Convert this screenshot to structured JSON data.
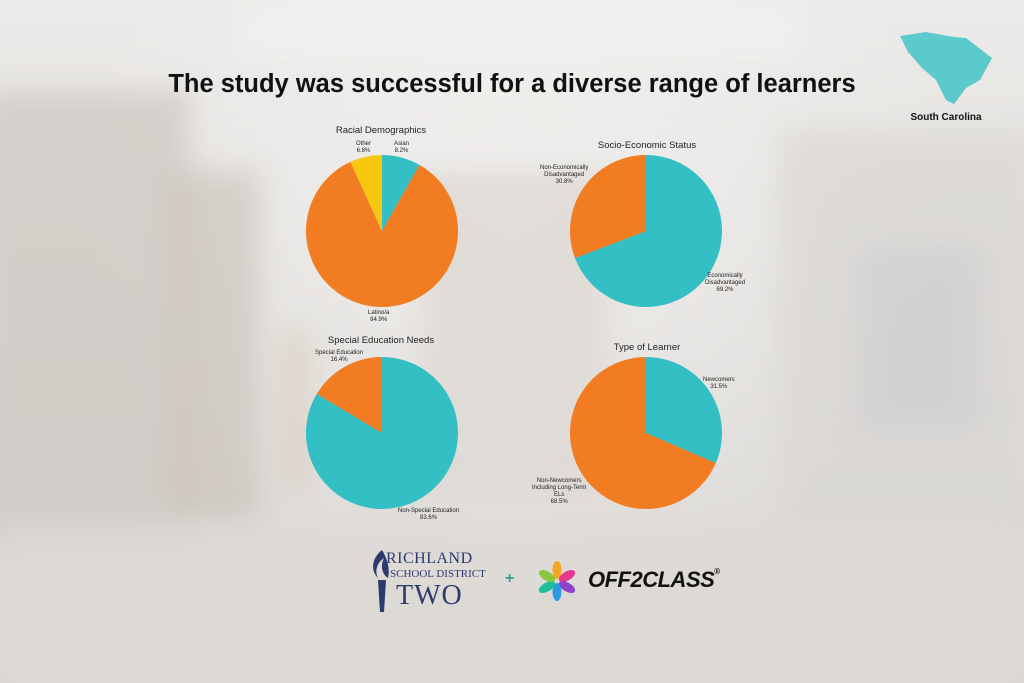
{
  "page": {
    "title": "The study was successful for a diverse range of learners",
    "state_label": "South Carolina"
  },
  "colors": {
    "teal": "#34bfc4",
    "orange": "#f27c21",
    "yellow": "#f8c811",
    "state_map": "#5cc9cc"
  },
  "chart_data": [
    {
      "type": "pie",
      "title": "Racial Demographics",
      "slices": [
        {
          "name": "Asian",
          "value": 8.2,
          "label": "8.2%",
          "color": "#34bfc4"
        },
        {
          "name": "Latino/a",
          "value": 84.9,
          "label": "84.9%",
          "color": "#f27c21"
        },
        {
          "name": "Other",
          "value": 6.8,
          "label": "6.8%",
          "color": "#f8c811"
        }
      ]
    },
    {
      "type": "pie",
      "title": "Socio-Economic Status",
      "slices": [
        {
          "name": "Economically Disadvantaged",
          "value": 69.2,
          "label": "69.2%",
          "color": "#34bfc4"
        },
        {
          "name": "Non-Economically Disadvantaged",
          "value": 30.8,
          "label": "30.8%",
          "color": "#f27c21"
        }
      ]
    },
    {
      "type": "pie",
      "title": "Special Education Needs",
      "slices": [
        {
          "name": "Non-Special Education",
          "value": 83.6,
          "label": "83.6%",
          "color": "#34bfc4"
        },
        {
          "name": "Special Education",
          "value": 16.4,
          "label": "16.4%",
          "color": "#f27c21"
        }
      ]
    },
    {
      "type": "pie",
      "title": "Type of Learner",
      "slices": [
        {
          "name": "Newcomers",
          "value": 31.5,
          "label": "31.5%",
          "color": "#34bfc4"
        },
        {
          "name": "Non-Newcomers Including Long-Term ELs",
          "value": 68.5,
          "label": "68.5%",
          "color": "#f27c21"
        }
      ]
    }
  ],
  "label_lines": {
    "c0": {
      "s0": [
        "Asian",
        "8.2%"
      ],
      "s1": [
        "Latino/a",
        "84.9%"
      ],
      "s2": [
        "Other",
        "6.8%"
      ]
    },
    "c1": {
      "s0": [
        "Economically",
        "Disadvantaged",
        "69.2%"
      ],
      "s1": [
        "Non-Economically",
        "Disadvantaged",
        "30.8%"
      ]
    },
    "c2": {
      "s0": [
        "Non-Special Education",
        "83.6%"
      ],
      "s1": [
        "Special Education",
        "16.4%"
      ]
    },
    "c3": {
      "s0": [
        "Newcomers",
        "31.5%"
      ],
      "s1": [
        "Non-Newcomers",
        "Including Long-Term",
        "ELs",
        "68.5%"
      ]
    }
  },
  "logos": {
    "district_line1": "RICHLAND",
    "district_line2": "SCHOOL DISTRICT",
    "district_line3": "TWO",
    "plus": "+",
    "partner": "OFF2CLASS",
    "partner_mark": "®"
  }
}
